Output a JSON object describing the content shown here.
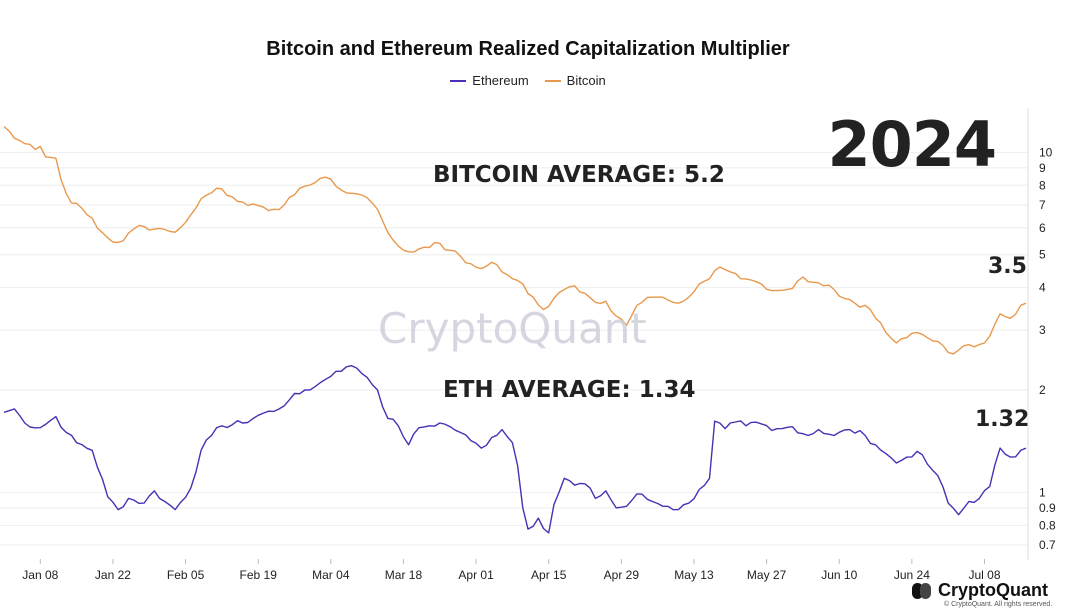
{
  "chart_data": {
    "type": "line",
    "title": "Bitcoin and Ethereum Realized Capitalization Multiplier",
    "yscale": "log",
    "ylim": [
      0.65,
      13.5
    ],
    "xlim_index": [
      0,
      197
    ],
    "x_ticks": [
      {
        "label": "Jan 08",
        "index": 7
      },
      {
        "label": "Jan 22",
        "index": 21
      },
      {
        "label": "Feb 05",
        "index": 35
      },
      {
        "label": "Feb 19",
        "index": 49
      },
      {
        "label": "Mar 04",
        "index": 63
      },
      {
        "label": "Mar 18",
        "index": 77
      },
      {
        "label": "Apr 01",
        "index": 91
      },
      {
        "label": "Apr 15",
        "index": 105
      },
      {
        "label": "Apr 29",
        "index": 119
      },
      {
        "label": "May 13",
        "index": 133
      },
      {
        "label": "May 27",
        "index": 147
      },
      {
        "label": "Jun 10",
        "index": 161
      },
      {
        "label": "Jun 24",
        "index": 175
      },
      {
        "label": "Jul 08",
        "index": 189
      }
    ],
    "y_ticks": [
      {
        "label": "0.7",
        "value": 0.7
      },
      {
        "label": "0.8",
        "value": 0.8
      },
      {
        "label": "0.9",
        "value": 0.9
      },
      {
        "label": "1",
        "value": 1
      },
      {
        "label": "2",
        "value": 2
      },
      {
        "label": "3",
        "value": 3
      },
      {
        "label": "4",
        "value": 4
      },
      {
        "label": "5",
        "value": 5
      },
      {
        "label": "6",
        "value": 6
      },
      {
        "label": "7",
        "value": 7
      },
      {
        "label": "8",
        "value": 8
      },
      {
        "label": "9",
        "value": 9
      },
      {
        "label": "10",
        "value": 10
      }
    ],
    "series": [
      {
        "name": "Ethereum",
        "color": "#4b2fb5",
        "anchors": [
          [
            0,
            1.72
          ],
          [
            2,
            1.76
          ],
          [
            4,
            1.6
          ],
          [
            7,
            1.55
          ],
          [
            10,
            1.67
          ],
          [
            12,
            1.5
          ],
          [
            14,
            1.4
          ],
          [
            17,
            1.33
          ],
          [
            20,
            0.97
          ],
          [
            22,
            0.89
          ],
          [
            24,
            0.96
          ],
          [
            27,
            0.93
          ],
          [
            29,
            1.01
          ],
          [
            31,
            0.94
          ],
          [
            33,
            0.89
          ],
          [
            36,
            1.03
          ],
          [
            38,
            1.33
          ],
          [
            40,
            1.47
          ],
          [
            42,
            1.57
          ],
          [
            46,
            1.6
          ],
          [
            50,
            1.71
          ],
          [
            52,
            1.73
          ],
          [
            55,
            1.87
          ],
          [
            58,
            2.0
          ],
          [
            60,
            2.05
          ],
          [
            62,
            2.15
          ],
          [
            64,
            2.27
          ],
          [
            66,
            2.34
          ],
          [
            68,
            2.32
          ],
          [
            70,
            2.18
          ],
          [
            72,
            2.0
          ],
          [
            74,
            1.65
          ],
          [
            76,
            1.57
          ],
          [
            78,
            1.38
          ],
          [
            80,
            1.55
          ],
          [
            82,
            1.57
          ],
          [
            84,
            1.6
          ],
          [
            86,
            1.56
          ],
          [
            88,
            1.5
          ],
          [
            90,
            1.42
          ],
          [
            92,
            1.35
          ],
          [
            94,
            1.45
          ],
          [
            96,
            1.53
          ],
          [
            98,
            1.4
          ],
          [
            99,
            1.2
          ],
          [
            100,
            0.9
          ],
          [
            101,
            0.78
          ],
          [
            103,
            0.84
          ],
          [
            105,
            0.76
          ],
          [
            106,
            0.92
          ],
          [
            108,
            1.1
          ],
          [
            110,
            1.05
          ],
          [
            112,
            1.06
          ],
          [
            114,
            0.96
          ],
          [
            116,
            1.01
          ],
          [
            118,
            0.9
          ],
          [
            120,
            0.91
          ],
          [
            122,
            0.99
          ],
          [
            125,
            0.94
          ],
          [
            128,
            0.91
          ],
          [
            130,
            0.89
          ],
          [
            132,
            0.93
          ],
          [
            134,
            1.02
          ],
          [
            136,
            1.1
          ],
          [
            137,
            1.62
          ],
          [
            139,
            1.54
          ],
          [
            141,
            1.61
          ],
          [
            143,
            1.57
          ],
          [
            146,
            1.59
          ],
          [
            148,
            1.52
          ],
          [
            150,
            1.54
          ],
          [
            152,
            1.56
          ],
          [
            155,
            1.47
          ],
          [
            157,
            1.53
          ],
          [
            160,
            1.47
          ],
          [
            163,
            1.53
          ],
          [
            166,
            1.47
          ],
          [
            168,
            1.38
          ],
          [
            170,
            1.3
          ],
          [
            172,
            1.22
          ],
          [
            174,
            1.27
          ],
          [
            176,
            1.32
          ],
          [
            178,
            1.21
          ],
          [
            180,
            1.12
          ],
          [
            182,
            0.93
          ],
          [
            184,
            0.86
          ],
          [
            186,
            0.94
          ],
          [
            188,
            0.96
          ],
          [
            190,
            1.04
          ],
          [
            192,
            1.35
          ],
          [
            194,
            1.27
          ],
          [
            196,
            1.33
          ],
          [
            197,
            1.35
          ]
        ],
        "seed": 7,
        "noise": 0.022
      },
      {
        "name": "Bitcoin",
        "color": "#e8994d",
        "anchors": [
          [
            0,
            11.9
          ],
          [
            2,
            11.0
          ],
          [
            4,
            10.6
          ],
          [
            6,
            10.2
          ],
          [
            7,
            10.4
          ],
          [
            8,
            9.7
          ],
          [
            10,
            9.6
          ],
          [
            11,
            8.3
          ],
          [
            13,
            7.1
          ],
          [
            15,
            6.85
          ],
          [
            17,
            6.4
          ],
          [
            19,
            5.8
          ],
          [
            21,
            5.45
          ],
          [
            23,
            5.5
          ],
          [
            25,
            5.95
          ],
          [
            27,
            6.05
          ],
          [
            29,
            5.95
          ],
          [
            32,
            5.85
          ],
          [
            34,
            6.0
          ],
          [
            36,
            6.55
          ],
          [
            38,
            7.3
          ],
          [
            40,
            7.6
          ],
          [
            42,
            7.8
          ],
          [
            44,
            7.4
          ],
          [
            46,
            7.15
          ],
          [
            48,
            7.05
          ],
          [
            50,
            6.9
          ],
          [
            52,
            6.8
          ],
          [
            54,
            7.0
          ],
          [
            56,
            7.5
          ],
          [
            58,
            7.95
          ],
          [
            60,
            8.15
          ],
          [
            62,
            8.45
          ],
          [
            64,
            7.95
          ],
          [
            66,
            7.6
          ],
          [
            68,
            7.55
          ],
          [
            70,
            7.35
          ],
          [
            72,
            6.8
          ],
          [
            74,
            5.8
          ],
          [
            76,
            5.3
          ],
          [
            78,
            5.1
          ],
          [
            80,
            5.2
          ],
          [
            82,
            5.25
          ],
          [
            84,
            5.4
          ],
          [
            86,
            5.15
          ],
          [
            88,
            4.95
          ],
          [
            90,
            4.7
          ],
          [
            92,
            4.55
          ],
          [
            94,
            4.75
          ],
          [
            96,
            4.45
          ],
          [
            98,
            4.25
          ],
          [
            100,
            4.1
          ],
          [
            102,
            3.75
          ],
          [
            104,
            3.45
          ],
          [
            106,
            3.72
          ],
          [
            108,
            3.95
          ],
          [
            110,
            4.05
          ],
          [
            112,
            3.85
          ],
          [
            114,
            3.62
          ],
          [
            116,
            3.65
          ],
          [
            118,
            3.3
          ],
          [
            120,
            3.1
          ],
          [
            122,
            3.55
          ],
          [
            125,
            3.75
          ],
          [
            128,
            3.68
          ],
          [
            130,
            3.6
          ],
          [
            132,
            3.75
          ],
          [
            134,
            4.1
          ],
          [
            136,
            4.25
          ],
          [
            138,
            4.6
          ],
          [
            140,
            4.45
          ],
          [
            142,
            4.25
          ],
          [
            146,
            4.1
          ],
          [
            148,
            3.92
          ],
          [
            150,
            3.93
          ],
          [
            152,
            3.98
          ],
          [
            154,
            4.3
          ],
          [
            156,
            4.15
          ],
          [
            158,
            4.05
          ],
          [
            160,
            3.95
          ],
          [
            162,
            3.72
          ],
          [
            164,
            3.6
          ],
          [
            166,
            3.55
          ],
          [
            168,
            3.25
          ],
          [
            170,
            2.95
          ],
          [
            172,
            2.75
          ],
          [
            174,
            2.85
          ],
          [
            176,
            2.95
          ],
          [
            178,
            2.85
          ],
          [
            180,
            2.78
          ],
          [
            182,
            2.58
          ],
          [
            184,
            2.62
          ],
          [
            186,
            2.72
          ],
          [
            188,
            2.72
          ],
          [
            190,
            2.88
          ],
          [
            192,
            3.35
          ],
          [
            194,
            3.25
          ],
          [
            196,
            3.55
          ],
          [
            197,
            3.6
          ]
        ],
        "seed": 13,
        "noise": 0.02
      }
    ]
  },
  "legend": {
    "ethereum_label": "Ethereum",
    "bitcoin_label": "Bitcoin",
    "ethereum_color": "#4b2fb5",
    "bitcoin_color": "#e8994d"
  },
  "annotations": {
    "year": "2024",
    "bitcoin_average": "BITCOIN AVERAGE: 5.2",
    "eth_average": "ETH AVERAGE: 1.34",
    "bitcoin_last": "3.5",
    "eth_last": "1.32"
  },
  "watermark": "CryptoQuant",
  "brand": {
    "name": "CryptoQuant",
    "copyright": "© CryptoQuant. All rights reserved."
  }
}
